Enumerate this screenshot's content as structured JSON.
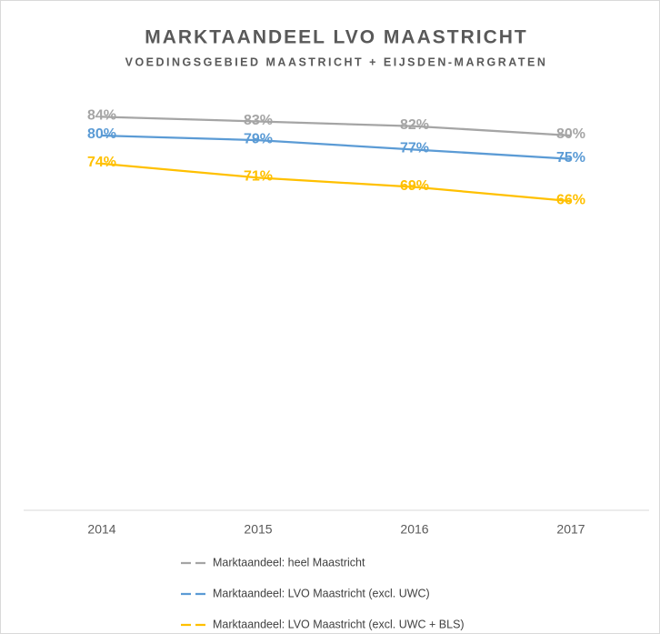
{
  "chart_data": {
    "type": "line",
    "title": "MARKTAANDEEL LVO MAASTRICHT",
    "subtitle": "VOEDINGSGEBIED MAASTRICHT + EIJSDEN-MARGRATEN",
    "categories": [
      "2014",
      "2015",
      "2016",
      "2017"
    ],
    "ylim": [
      0,
      100
    ],
    "legend": "bottom",
    "series": [
      {
        "name": "Marktaandeel: heel Maastricht",
        "color": "#a5a5a5",
        "values": [
          84,
          83,
          82,
          80
        ],
        "value_labels": [
          "84%",
          "83%",
          "82%",
          "80%"
        ]
      },
      {
        "name": "Marktaandeel: LVO Maastricht (excl. UWC)",
        "color": "#5b9bd5",
        "values": [
          80,
          79,
          77,
          75
        ],
        "value_labels": [
          "80%",
          "79%",
          "77%",
          "75%"
        ]
      },
      {
        "name": "Marktaandeel: LVO Maastricht (excl. UWC + BLS)",
        "color": "#ffc000",
        "values": [
          74,
          71,
          69,
          66
        ],
        "value_labels": [
          "74%",
          "71%",
          "69%",
          "66%"
        ]
      }
    ]
  }
}
